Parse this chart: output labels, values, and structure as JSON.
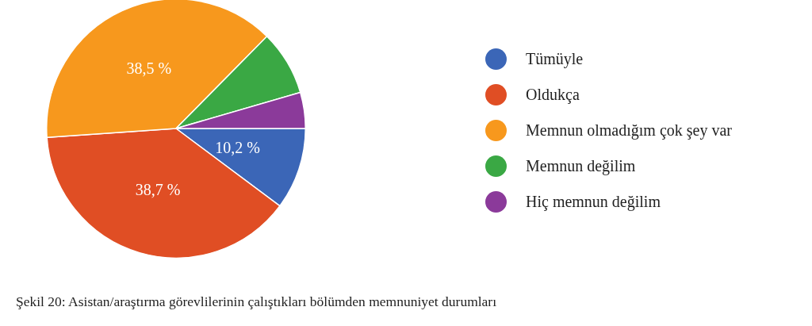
{
  "chart_data": {
    "type": "pie",
    "categories": [
      "Tümüyle",
      "Oldukça",
      "Memnun olmadığım çok şey var",
      "Memnun değilim",
      "Hiç memnun değilim"
    ],
    "values": [
      10.2,
      38.7,
      38.5,
      8.1,
      4.5
    ],
    "colors": [
      "#3b66b7",
      "#e04e24",
      "#f7981d",
      "#3aa844",
      "#8b3a9a"
    ],
    "value_labels": [
      "10,2 %",
      "38,7 %",
      "38,5 %",
      null,
      null
    ],
    "legend": "right",
    "annotations": [
      "Şekil 20: Asistan/araştırma görevlilerinin çalıştıkları bölümden memnuniyet durumları"
    ]
  }
}
